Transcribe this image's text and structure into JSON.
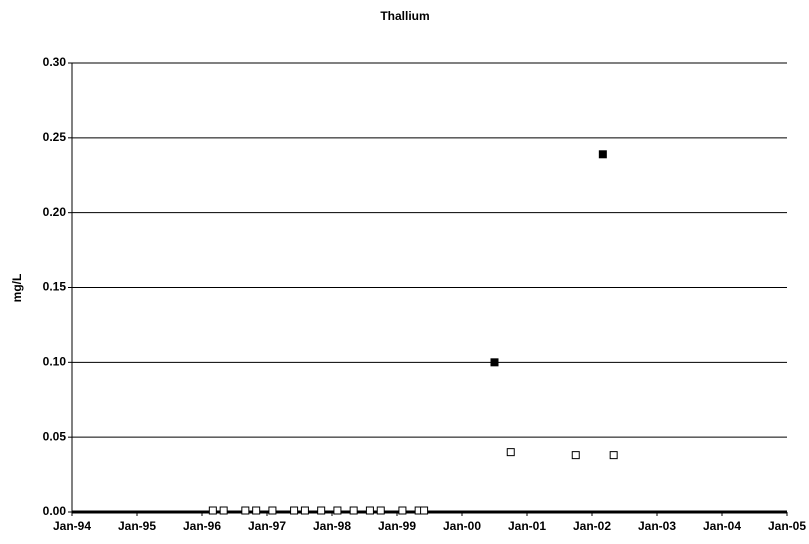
{
  "chart_data": {
    "type": "scatter",
    "title": "Thallium",
    "y_label": "mg/L",
    "xlim": [
      "Jan-94",
      "Jan-05"
    ],
    "xticks": [
      "Jan-94",
      "Jan-95",
      "Jan-96",
      "Jan-97",
      "Jan-98",
      "Jan-99",
      "Jan-00",
      "Jan-01",
      "Jan-02",
      "Jan-03",
      "Jan-04",
      "Jan-05"
    ],
    "ylim": [
      0,
      0.3
    ],
    "yticks": [
      {
        "value": 0,
        "label": "0.00"
      },
      {
        "value": 0.05,
        "label": "0.05"
      },
      {
        "value": 0.1,
        "label": "0.10"
      },
      {
        "value": 0.15,
        "label": "0.15"
      },
      {
        "value": 0.2,
        "label": "0.20"
      },
      {
        "value": 0.25,
        "label": "0.25"
      },
      {
        "value": 0.3,
        "label": "0.30"
      }
    ],
    "grid": true,
    "series": [
      {
        "color": "#000000",
        "fill": "#000000",
        "x": [
          "Jul-00",
          "Mar-02"
        ],
        "values": [
          0.1,
          0.239
        ]
      },
      {
        "color": "#000000",
        "fill": "#ffffff",
        "x": [
          "Mar-96",
          "May-96",
          "Sep-96",
          "Nov-96",
          "Feb-97",
          "Jun-97",
          "Aug-97",
          "Nov-97",
          "Feb-98",
          "May-98",
          "Aug-98",
          "Oct-98",
          "Feb-99",
          "May-99",
          "Jun-99",
          "Oct-00",
          "Oct-01",
          "May-02"
        ],
        "values": [
          0.001,
          0.001,
          0.001,
          0.001,
          0.001,
          0.001,
          0.001,
          0.001,
          0.001,
          0.001,
          0.001,
          0.001,
          0.001,
          0.001,
          0.001,
          0.04,
          0.038,
          0.038
        ]
      }
    ]
  }
}
